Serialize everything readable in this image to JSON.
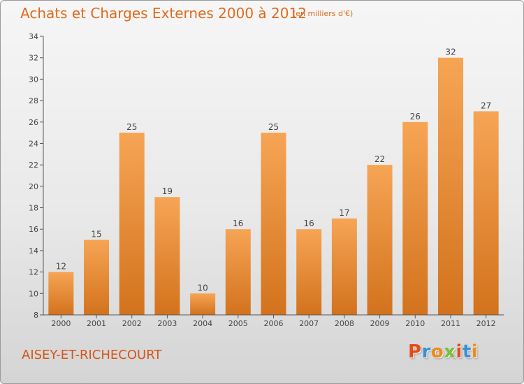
{
  "header": {
    "title": "Achats et Charges Externes 2000 à 2012",
    "unit_note": "(en milliers d'€)"
  },
  "footer": {
    "commune": "AISEY-ET-RICHECOURT",
    "logo": "Proxiti"
  },
  "colors": {
    "bar_top": "#f6a555",
    "bar_bottom": "#d3721d",
    "title": "#e06a1c",
    "logo_letters": [
      "#e54c16",
      "#3b8fd0",
      "#f08a1c",
      "#7bbf3a",
      "#e54c16",
      "#3b8fd0",
      "#f08a1c"
    ]
  },
  "chart_data": {
    "type": "bar",
    "title": "Achats et Charges Externes 2000 à 2012",
    "xlabel": "",
    "ylabel": "",
    "categories": [
      "2000",
      "2001",
      "2002",
      "2003",
      "2004",
      "2005",
      "2006",
      "2007",
      "2008",
      "2009",
      "2010",
      "2011",
      "2012"
    ],
    "values": [
      12,
      15,
      25,
      19,
      10,
      16,
      25,
      16,
      17,
      22,
      26,
      32,
      27
    ],
    "ylim": [
      8,
      34
    ],
    "yticks": [
      8,
      10,
      12,
      14,
      16,
      18,
      20,
      22,
      24,
      26,
      28,
      30,
      32,
      34
    ],
    "grid": false,
    "data_labels": true
  }
}
